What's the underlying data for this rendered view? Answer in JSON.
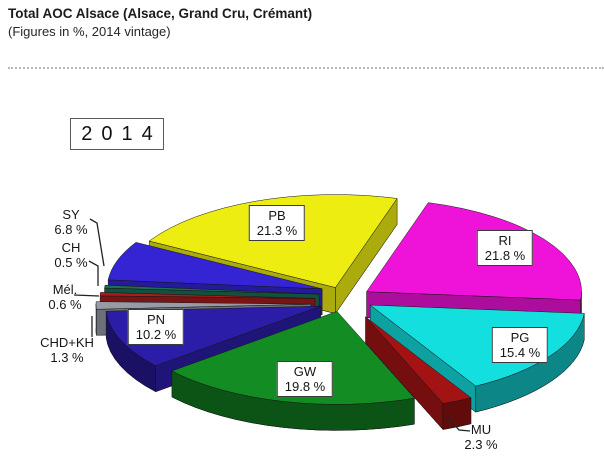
{
  "header": {
    "title": "Total AOC Alsace (Alsace, Grand Cru, Crémant)",
    "subtitle": "(Figures in %, 2014 vintage)"
  },
  "year_badge": "2014",
  "chart_data": {
    "type": "pie",
    "style": "3d-exploded",
    "title": "Total AOC Alsace (Alsace, Grand Cru, Crémant)",
    "subtitle": "(Figures in %, 2014 vintage)",
    "unit": "%",
    "start_angle_deg": 150,
    "direction": "clockwise",
    "legend_position": "none",
    "slices": [
      {
        "code": "PB",
        "value": 21.3,
        "value_label": "21.3 %",
        "color": "#eded12",
        "label_style": "boxed"
      },
      {
        "code": "RI",
        "value": 21.8,
        "value_label": "21.8 %",
        "color": "#ef12d9",
        "label_style": "boxed"
      },
      {
        "code": "PG",
        "value": 15.4,
        "value_label": "15.4 %",
        "color": "#14dfdf",
        "label_style": "boxed"
      },
      {
        "code": "MU",
        "value": 2.3,
        "value_label": "2.3 %",
        "color": "#a31313",
        "label_style": "outside"
      },
      {
        "code": "GW",
        "value": 19.8,
        "value_label": "19.8 %",
        "color": "#138c24",
        "label_style": "boxed"
      },
      {
        "code": "PN",
        "value": 10.2,
        "value_label": "10.2 %",
        "color": "#2b1da8",
        "label_style": "boxed"
      },
      {
        "code": "CHD+KH",
        "value": 1.3,
        "value_label": "1.3 %",
        "color": "#989ba6",
        "label_style": "outside"
      },
      {
        "code": "Mél.",
        "value": 0.6,
        "value_label": "0.6 %",
        "color": "#a81c1c",
        "label_style": "outside"
      },
      {
        "code": "CH",
        "value": 0.5,
        "value_label": "0.5 %",
        "color": "#1b6f55",
        "label_style": "outside"
      },
      {
        "code": "SY",
        "value": 6.8,
        "value_label": "6.8 %",
        "color": "#3424d4",
        "label_style": "outside"
      }
    ]
  }
}
